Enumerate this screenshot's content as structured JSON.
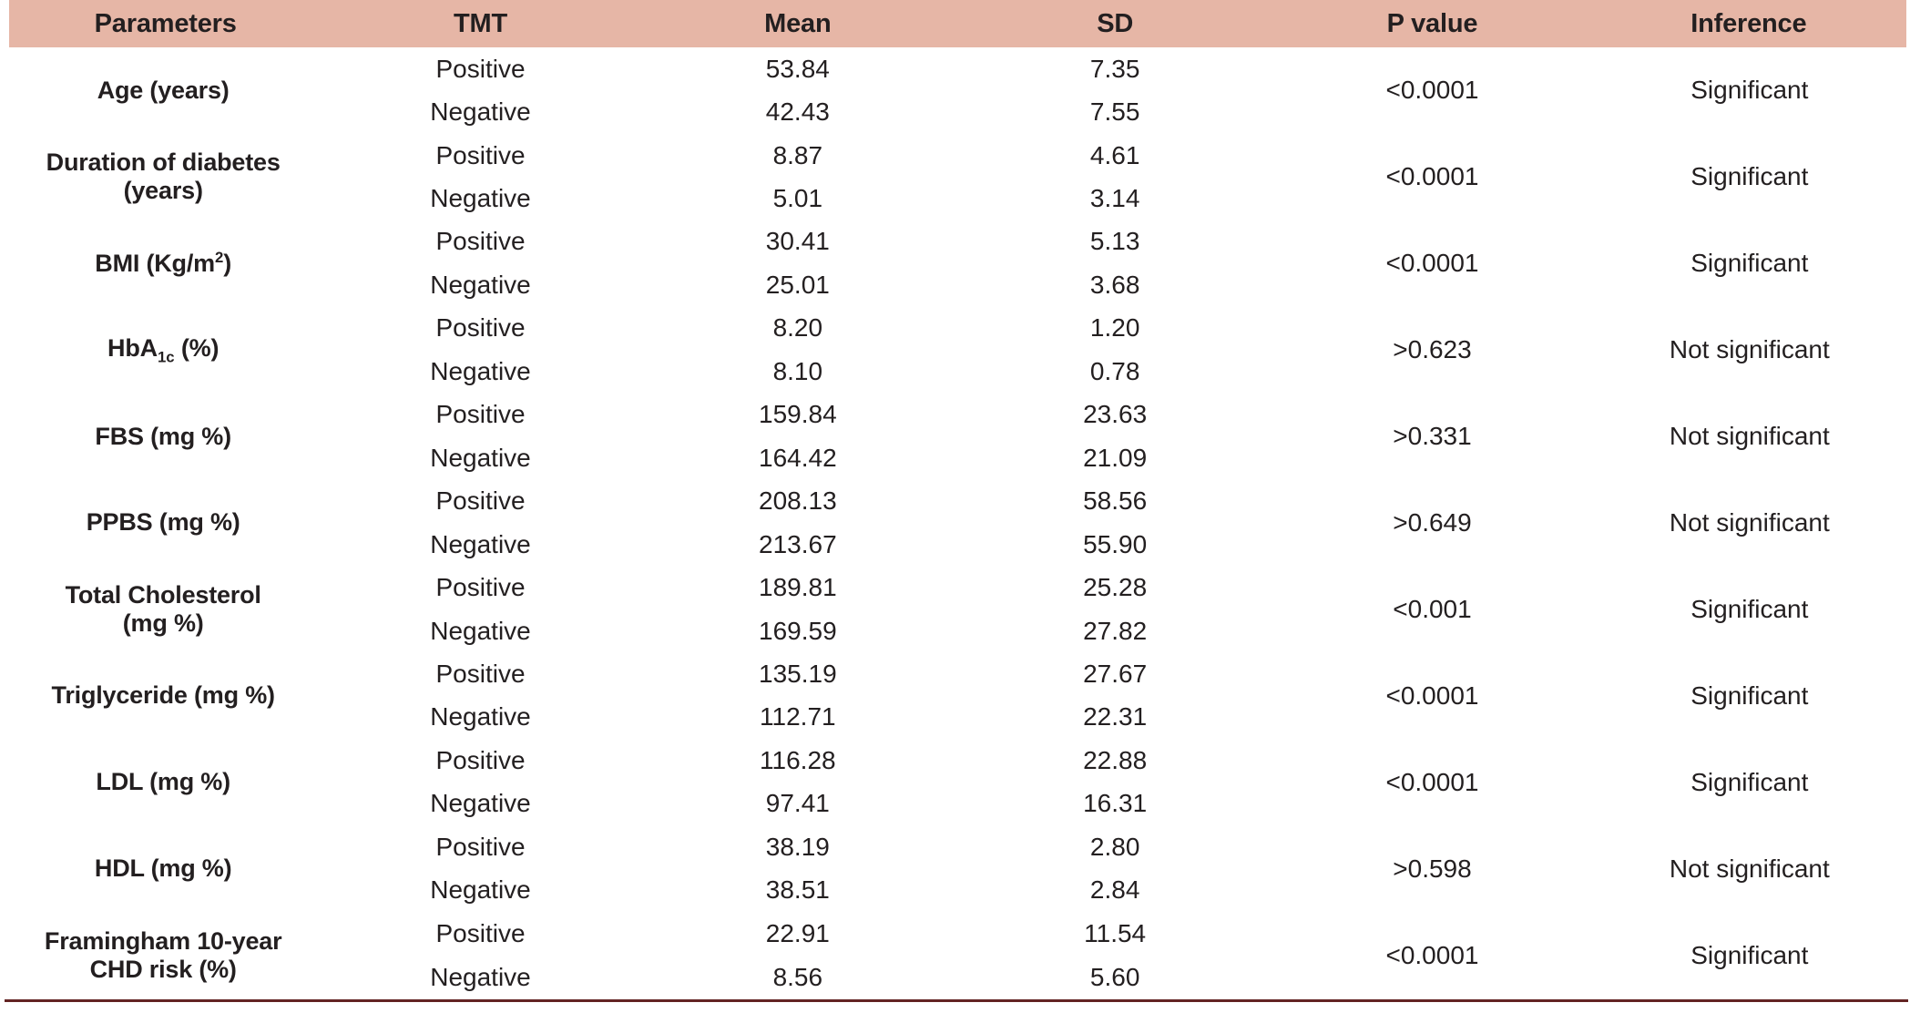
{
  "colors": {
    "header_bg": "#e6b6a6",
    "text": "#231f20",
    "bottom_rule": "#632423",
    "page_bg": "#ffffff"
  },
  "table": {
    "headers": {
      "parameters": "Parameters",
      "tmt": "TMT",
      "mean": "Mean",
      "sd": "SD",
      "p_value": "P value",
      "inference": "Inference"
    },
    "rows": [
      {
        "parameter_parts": [
          {
            "t": "Age (years)"
          }
        ],
        "sub_rows": [
          {
            "tmt": "Positive",
            "mean": "53.84",
            "sd": "7.35"
          },
          {
            "tmt": "Negative",
            "mean": "42.43",
            "sd": "7.55"
          }
        ],
        "p_value": "<0.0001",
        "inference": "Significant"
      },
      {
        "parameter_parts": [
          {
            "t": "Duration of diabetes"
          },
          {
            "br": true
          },
          {
            "t": "(years)"
          }
        ],
        "sub_rows": [
          {
            "tmt": "Positive",
            "mean": "8.87",
            "sd": "4.61"
          },
          {
            "tmt": "Negative",
            "mean": "5.01",
            "sd": "3.14"
          }
        ],
        "p_value": "<0.0001",
        "inference": "Significant"
      },
      {
        "parameter_parts": [
          {
            "t": "BMI (Kg/m"
          },
          {
            "t": "2",
            "s": "sup"
          },
          {
            "t": ")"
          }
        ],
        "sub_rows": [
          {
            "tmt": "Positive",
            "mean": "30.41",
            "sd": "5.13"
          },
          {
            "tmt": "Negative",
            "mean": "25.01",
            "sd": "3.68"
          }
        ],
        "p_value": "<0.0001",
        "inference": "Significant"
      },
      {
        "parameter_parts": [
          {
            "t": "HbA"
          },
          {
            "t": "1c",
            "s": "sub"
          },
          {
            "t": " (%)"
          }
        ],
        "sub_rows": [
          {
            "tmt": "Positive",
            "mean": "8.20",
            "sd": "1.20"
          },
          {
            "tmt": "Negative",
            "mean": "8.10",
            "sd": "0.78"
          }
        ],
        "p_value": ">0.623",
        "inference": "Not significant"
      },
      {
        "parameter_parts": [
          {
            "t": "FBS (mg %)"
          }
        ],
        "sub_rows": [
          {
            "tmt": "Positive",
            "mean": "159.84",
            "sd": "23.63"
          },
          {
            "tmt": "Negative",
            "mean": "164.42",
            "sd": "21.09"
          }
        ],
        "p_value": ">0.331",
        "inference": "Not significant"
      },
      {
        "parameter_parts": [
          {
            "t": "PPBS (mg %)"
          }
        ],
        "sub_rows": [
          {
            "tmt": "Positive",
            "mean": "208.13",
            "sd": "58.56"
          },
          {
            "tmt": "Negative",
            "mean": "213.67",
            "sd": "55.90"
          }
        ],
        "p_value": ">0.649",
        "inference": "Not significant"
      },
      {
        "parameter_parts": [
          {
            "t": "Total Cholesterol"
          },
          {
            "br": true
          },
          {
            "t": "(mg %)"
          }
        ],
        "sub_rows": [
          {
            "tmt": "Positive",
            "mean": "189.81",
            "sd": "25.28"
          },
          {
            "tmt": "Negative",
            "mean": "169.59",
            "sd": "27.82"
          }
        ],
        "p_value": "<0.001",
        "inference": "Significant"
      },
      {
        "parameter_parts": [
          {
            "t": "Triglyceride (mg %)"
          }
        ],
        "sub_rows": [
          {
            "tmt": "Positive",
            "mean": "135.19",
            "sd": "27.67"
          },
          {
            "tmt": "Negative",
            "mean": "112.71",
            "sd": "22.31"
          }
        ],
        "p_value": "<0.0001",
        "inference": "Significant"
      },
      {
        "parameter_parts": [
          {
            "t": "LDL (mg %)"
          }
        ],
        "sub_rows": [
          {
            "tmt": "Positive",
            "mean": "116.28",
            "sd": "22.88"
          },
          {
            "tmt": "Negative",
            "mean": "97.41",
            "sd": "16.31"
          }
        ],
        "p_value": "<0.0001",
        "inference": "Significant"
      },
      {
        "parameter_parts": [
          {
            "t": "HDL (mg %)"
          }
        ],
        "sub_rows": [
          {
            "tmt": "Positive",
            "mean": "38.19",
            "sd": "2.80"
          },
          {
            "tmt": "Negative",
            "mean": "38.51",
            "sd": "2.84"
          }
        ],
        "p_value": ">0.598",
        "inference": "Not significant"
      },
      {
        "parameter_parts": [
          {
            "t": "Framingham 10-year"
          },
          {
            "br": true
          },
          {
            "t": "CHD risk (%)"
          }
        ],
        "sub_rows": [
          {
            "tmt": "Positive",
            "mean": "22.91",
            "sd": "11.54"
          },
          {
            "tmt": "Negative",
            "mean": "8.56",
            "sd": "5.60"
          }
        ],
        "p_value": "<0.0001",
        "inference": "Significant"
      }
    ]
  }
}
